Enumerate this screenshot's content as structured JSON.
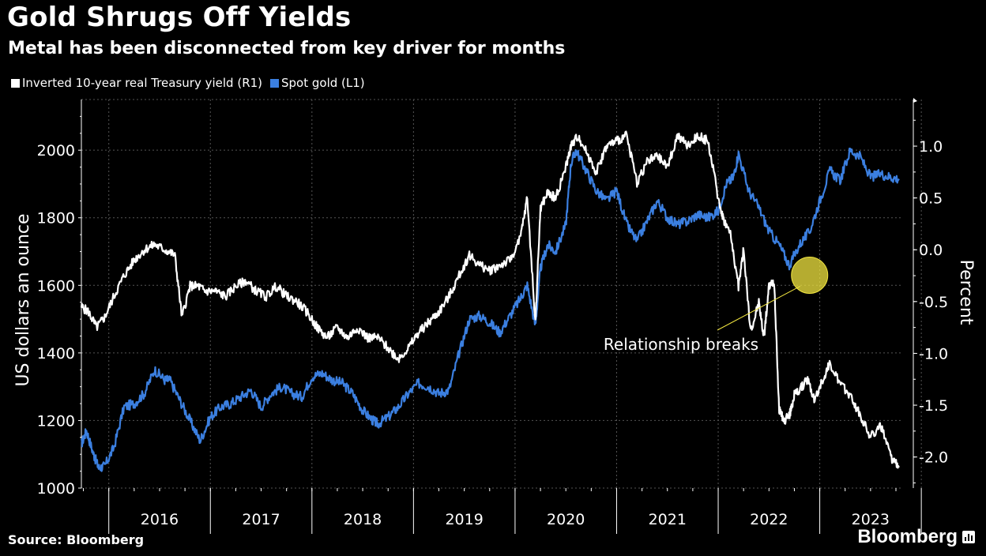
{
  "title": "Gold Shrugs Off Yields",
  "subtitle": "Metal has been disconnected from key driver for months",
  "source": "Source: Bloomberg",
  "brand": "Bloomberg",
  "colors": {
    "background": "#000000",
    "gold": "#3b7fe0",
    "yield": "#ffffff",
    "annotation": "#f2e640",
    "grid": "#555555"
  },
  "chart_data": {
    "type": "line",
    "title": "Gold Shrugs Off Yields",
    "subtitle": "Metal has been disconnected from key driver for months",
    "ylabel_left": "US dollars an ounce",
    "ylabel_right": "Percent",
    "ylim_left": [
      1000,
      2150
    ],
    "ylim_right": [
      -2.3,
      1.45
    ],
    "yticks_left": [
      "1000",
      "1200",
      "1400",
      "1600",
      "1800",
      "2000"
    ],
    "yticks_right": [
      "-2.0",
      "-1.5",
      "-1.0",
      "-0.5",
      "0.0",
      "0.5",
      "1.0"
    ],
    "x_categories": [
      "2016",
      "2017",
      "2018",
      "2019",
      "2020",
      "2021",
      "2022",
      "2023"
    ],
    "xlim": [
      2015.73,
      2023.82
    ],
    "legend_placement": "top-left",
    "grid": true,
    "series": [
      {
        "name": "Inverted 10-year real Treasury yield (R1)",
        "axis": "right",
        "color": "#ffffff",
        "x": [
          2015.73,
          2015.8,
          2015.88,
          2015.96,
          2016.05,
          2016.15,
          2016.25,
          2016.35,
          2016.45,
          2016.55,
          2016.65,
          2016.72,
          2016.8,
          2016.88,
          2016.95,
          2017.05,
          2017.15,
          2017.25,
          2017.35,
          2017.45,
          2017.55,
          2017.65,
          2017.75,
          2017.85,
          2017.95,
          2018.05,
          2018.15,
          2018.25,
          2018.35,
          2018.45,
          2018.55,
          2018.65,
          2018.75,
          2018.85,
          2018.95,
          2019.05,
          2019.15,
          2019.25,
          2019.35,
          2019.45,
          2019.55,
          2019.65,
          2019.75,
          2019.85,
          2019.95,
          2020.05,
          2020.12,
          2020.2,
          2020.25,
          2020.32,
          2020.4,
          2020.5,
          2020.55,
          2020.62,
          2020.7,
          2020.8,
          2020.9,
          2021.0,
          2021.1,
          2021.2,
          2021.3,
          2021.4,
          2021.5,
          2021.6,
          2021.7,
          2021.8,
          2021.9,
          2022.0,
          2022.05,
          2022.12,
          2022.2,
          2022.25,
          2022.32,
          2022.4,
          2022.45,
          2022.5,
          2022.55,
          2022.6,
          2022.65,
          2022.7,
          2022.75,
          2022.8,
          2022.88,
          2022.95,
          2023.05,
          2023.1,
          2023.2,
          2023.3,
          2023.4,
          2023.5,
          2023.6,
          2023.7,
          2023.78
        ],
        "y": [
          -0.55,
          -0.6,
          -0.75,
          -0.65,
          -0.45,
          -0.25,
          -0.1,
          0.0,
          0.05,
          0.0,
          -0.05,
          -0.65,
          -0.35,
          -0.35,
          -0.4,
          -0.4,
          -0.45,
          -0.35,
          -0.3,
          -0.4,
          -0.45,
          -0.35,
          -0.45,
          -0.5,
          -0.6,
          -0.75,
          -0.85,
          -0.75,
          -0.85,
          -0.75,
          -0.85,
          -0.85,
          -0.95,
          -1.05,
          -0.95,
          -0.8,
          -0.7,
          -0.6,
          -0.45,
          -0.25,
          -0.05,
          -0.15,
          -0.2,
          -0.15,
          -0.1,
          0.1,
          0.5,
          -0.7,
          0.4,
          0.55,
          0.5,
          0.8,
          1.0,
          1.1,
          0.95,
          0.75,
          1.0,
          1.05,
          1.1,
          0.65,
          0.85,
          0.9,
          0.8,
          1.1,
          1.0,
          1.1,
          1.05,
          0.5,
          0.3,
          0.15,
          -0.35,
          0.0,
          -0.8,
          -0.5,
          -0.85,
          -0.35,
          -0.3,
          -1.55,
          -1.65,
          -1.6,
          -1.4,
          -1.35,
          -1.25,
          -1.45,
          -1.2,
          -1.1,
          -1.3,
          -1.4,
          -1.6,
          -1.8,
          -1.7,
          -2.0,
          -2.1
        ]
      },
      {
        "name": "Spot gold (L1)",
        "axis": "left",
        "color": "#3b7fe0",
        "x": [
          2015.73,
          2015.78,
          2015.85,
          2015.9,
          2015.96,
          2016.05,
          2016.15,
          2016.25,
          2016.35,
          2016.45,
          2016.55,
          2016.6,
          2016.7,
          2016.8,
          2016.9,
          2017.0,
          2017.1,
          2017.2,
          2017.3,
          2017.4,
          2017.5,
          2017.6,
          2017.7,
          2017.8,
          2017.9,
          2018.0,
          2018.1,
          2018.2,
          2018.3,
          2018.4,
          2018.5,
          2018.6,
          2018.65,
          2018.75,
          2018.85,
          2018.95,
          2019.05,
          2019.15,
          2019.25,
          2019.35,
          2019.45,
          2019.55,
          2019.65,
          2019.75,
          2019.85,
          2019.95,
          2020.05,
          2020.12,
          2020.2,
          2020.25,
          2020.32,
          2020.4,
          2020.5,
          2020.55,
          2020.6,
          2020.7,
          2020.8,
          2020.9,
          2021.0,
          2021.1,
          2021.2,
          2021.3,
          2021.4,
          2021.5,
          2021.6,
          2021.7,
          2021.8,
          2021.9,
          2022.0,
          2022.08,
          2022.15,
          2022.2,
          2022.3,
          2022.4,
          2022.5,
          2022.6,
          2022.7,
          2022.8,
          2022.9,
          2023.0,
          2023.1,
          2023.2,
          2023.3,
          2023.4,
          2023.5,
          2023.6,
          2023.7,
          2023.78
        ],
        "y": [
          1130,
          1170,
          1100,
          1060,
          1065,
          1120,
          1240,
          1250,
          1280,
          1350,
          1320,
          1320,
          1260,
          1200,
          1140,
          1210,
          1240,
          1250,
          1270,
          1290,
          1240,
          1280,
          1300,
          1280,
          1270,
          1330,
          1340,
          1320,
          1310,
          1280,
          1230,
          1200,
          1190,
          1210,
          1240,
          1280,
          1310,
          1300,
          1280,
          1290,
          1400,
          1500,
          1510,
          1490,
          1460,
          1510,
          1560,
          1600,
          1480,
          1650,
          1720,
          1700,
          1780,
          1960,
          2000,
          1940,
          1880,
          1850,
          1880,
          1780,
          1730,
          1790,
          1850,
          1800,
          1780,
          1790,
          1810,
          1800,
          1820,
          1900,
          1920,
          1990,
          1880,
          1830,
          1760,
          1720,
          1660,
          1720,
          1760,
          1850,
          1940,
          1910,
          2000,
          1980,
          1920,
          1930,
          1920,
          1915
        ]
      }
    ],
    "annotation": {
      "text": "Relationship breaks",
      "circle_center": [
        2022.9,
        1630
      ]
    }
  }
}
